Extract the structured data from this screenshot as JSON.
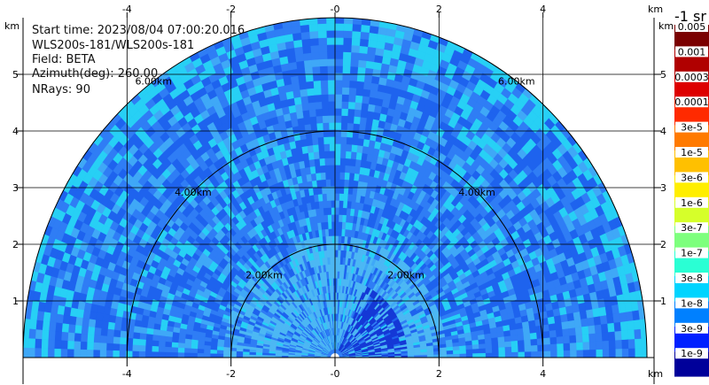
{
  "info": {
    "start_time": "Start time: 2023/08/04 07:00:20.016",
    "instrument": "WLS200s-181/WLS200s-181",
    "field": "Field: BETA",
    "azimuth": "Azimuth(deg): 260.00",
    "nrays": "NRays: 90"
  },
  "axes": {
    "unit": "km",
    "x_ticks": [
      "-4",
      "-2",
      "-0",
      "2",
      "4"
    ],
    "y_ticks": [
      "1",
      "2",
      "3",
      "4",
      "5"
    ],
    "x_tick_values": [
      -4,
      -2,
      0,
      2,
      4
    ],
    "y_tick_values": [
      1,
      2,
      3,
      4,
      5
    ],
    "x_range": [
      -6.0,
      6.0
    ],
    "y_range": [
      0,
      6.0
    ]
  },
  "rings": {
    "values_km": [
      2,
      4,
      6
    ],
    "labels": [
      "2.00km",
      "4.00km",
      "6.00km"
    ]
  },
  "colorbar": {
    "title": "-1 sr",
    "labels": [
      "0.005",
      "0.001",
      "0.0003",
      "0.0001",
      "3e-5",
      "1e-5",
      "3e-6",
      "1e-6",
      "3e-7",
      "1e-7",
      "3e-8",
      "1e-8",
      "3e-9",
      "1e-9"
    ],
    "colors": [
      "#7a0000",
      "#b00000",
      "#dd0000",
      "#ff2a00",
      "#ff7a00",
      "#ffc000",
      "#ffee00",
      "#d6ff2a",
      "#7dff7d",
      "#2affd4",
      "#00d4ff",
      "#0080ff",
      "#0020ff",
      "#00009a"
    ]
  },
  "field_colors": {
    "primary": "#2f7df5",
    "secondary": "#1e63ee",
    "light": "#3fa8f7",
    "cyan": "#27d0f5",
    "deep": "#1438d6",
    "near_light": "#4cb8f4"
  }
}
